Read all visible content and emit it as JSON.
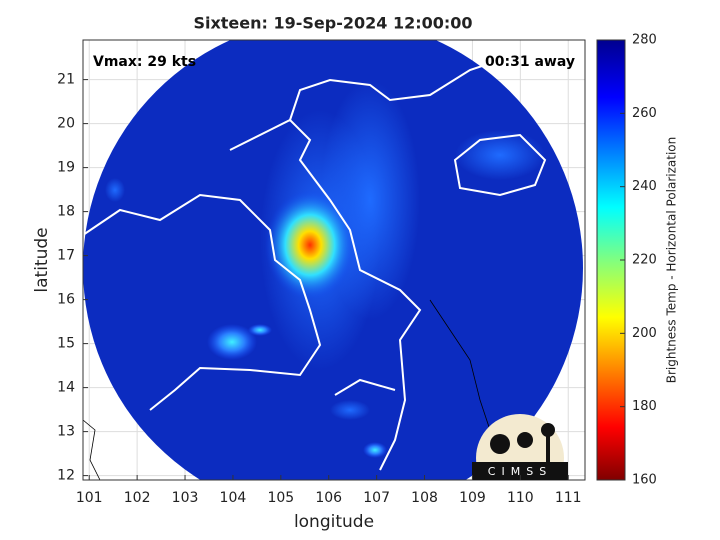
{
  "chart_data": {
    "type": "image-map",
    "title": "Sixteen: 19-Sep-2024 12:00:00",
    "annotations": [
      "Vmax: 29 kts",
      "00:31 away"
    ],
    "xlabel": "longitude",
    "ylabel": "latitude",
    "xlim": [
      100.87,
      111.35
    ],
    "xticks": [
      101,
      102,
      103,
      104,
      105,
      106,
      107,
      108,
      109,
      110,
      111
    ],
    "ylim": [
      11.9,
      21.9
    ],
    "yticks": [
      12,
      13,
      14,
      15,
      16,
      17,
      18,
      19,
      20,
      21
    ],
    "grid": true,
    "colorbar": {
      "label": "Brightness Temp - Horizontal Polarization",
      "lim": [
        160,
        280
      ],
      "ticks": [
        160,
        180,
        200,
        220,
        240,
        260,
        280
      ]
    },
    "logo": "CIMSS"
  }
}
